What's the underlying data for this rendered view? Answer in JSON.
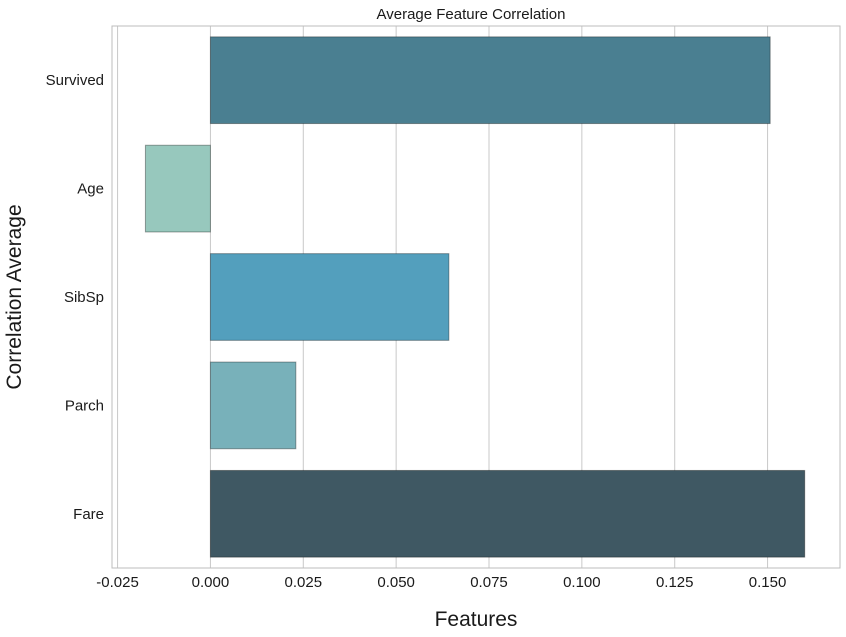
{
  "chart_data": {
    "type": "bar",
    "orientation": "horizontal",
    "title": "Average Feature Correlation",
    "xlabel": "Features",
    "ylabel": "Correlation Average",
    "categories": [
      "Survived",
      "Age",
      "SibSp",
      "Parch",
      "Fare"
    ],
    "values": [
      0.1507,
      -0.0175,
      0.0642,
      0.023,
      0.16
    ],
    "colors": [
      "#4a7f91",
      "#97c8bd",
      "#539fbd",
      "#78b1ba",
      "#3f5863"
    ],
    "xlim": [
      -0.0265,
      0.1695
    ],
    "xticks": [
      "-0.025",
      "0.000",
      "0.025",
      "0.050",
      "0.075",
      "0.100",
      "0.125",
      "0.150"
    ],
    "grid": "vertical",
    "legend": "none"
  }
}
